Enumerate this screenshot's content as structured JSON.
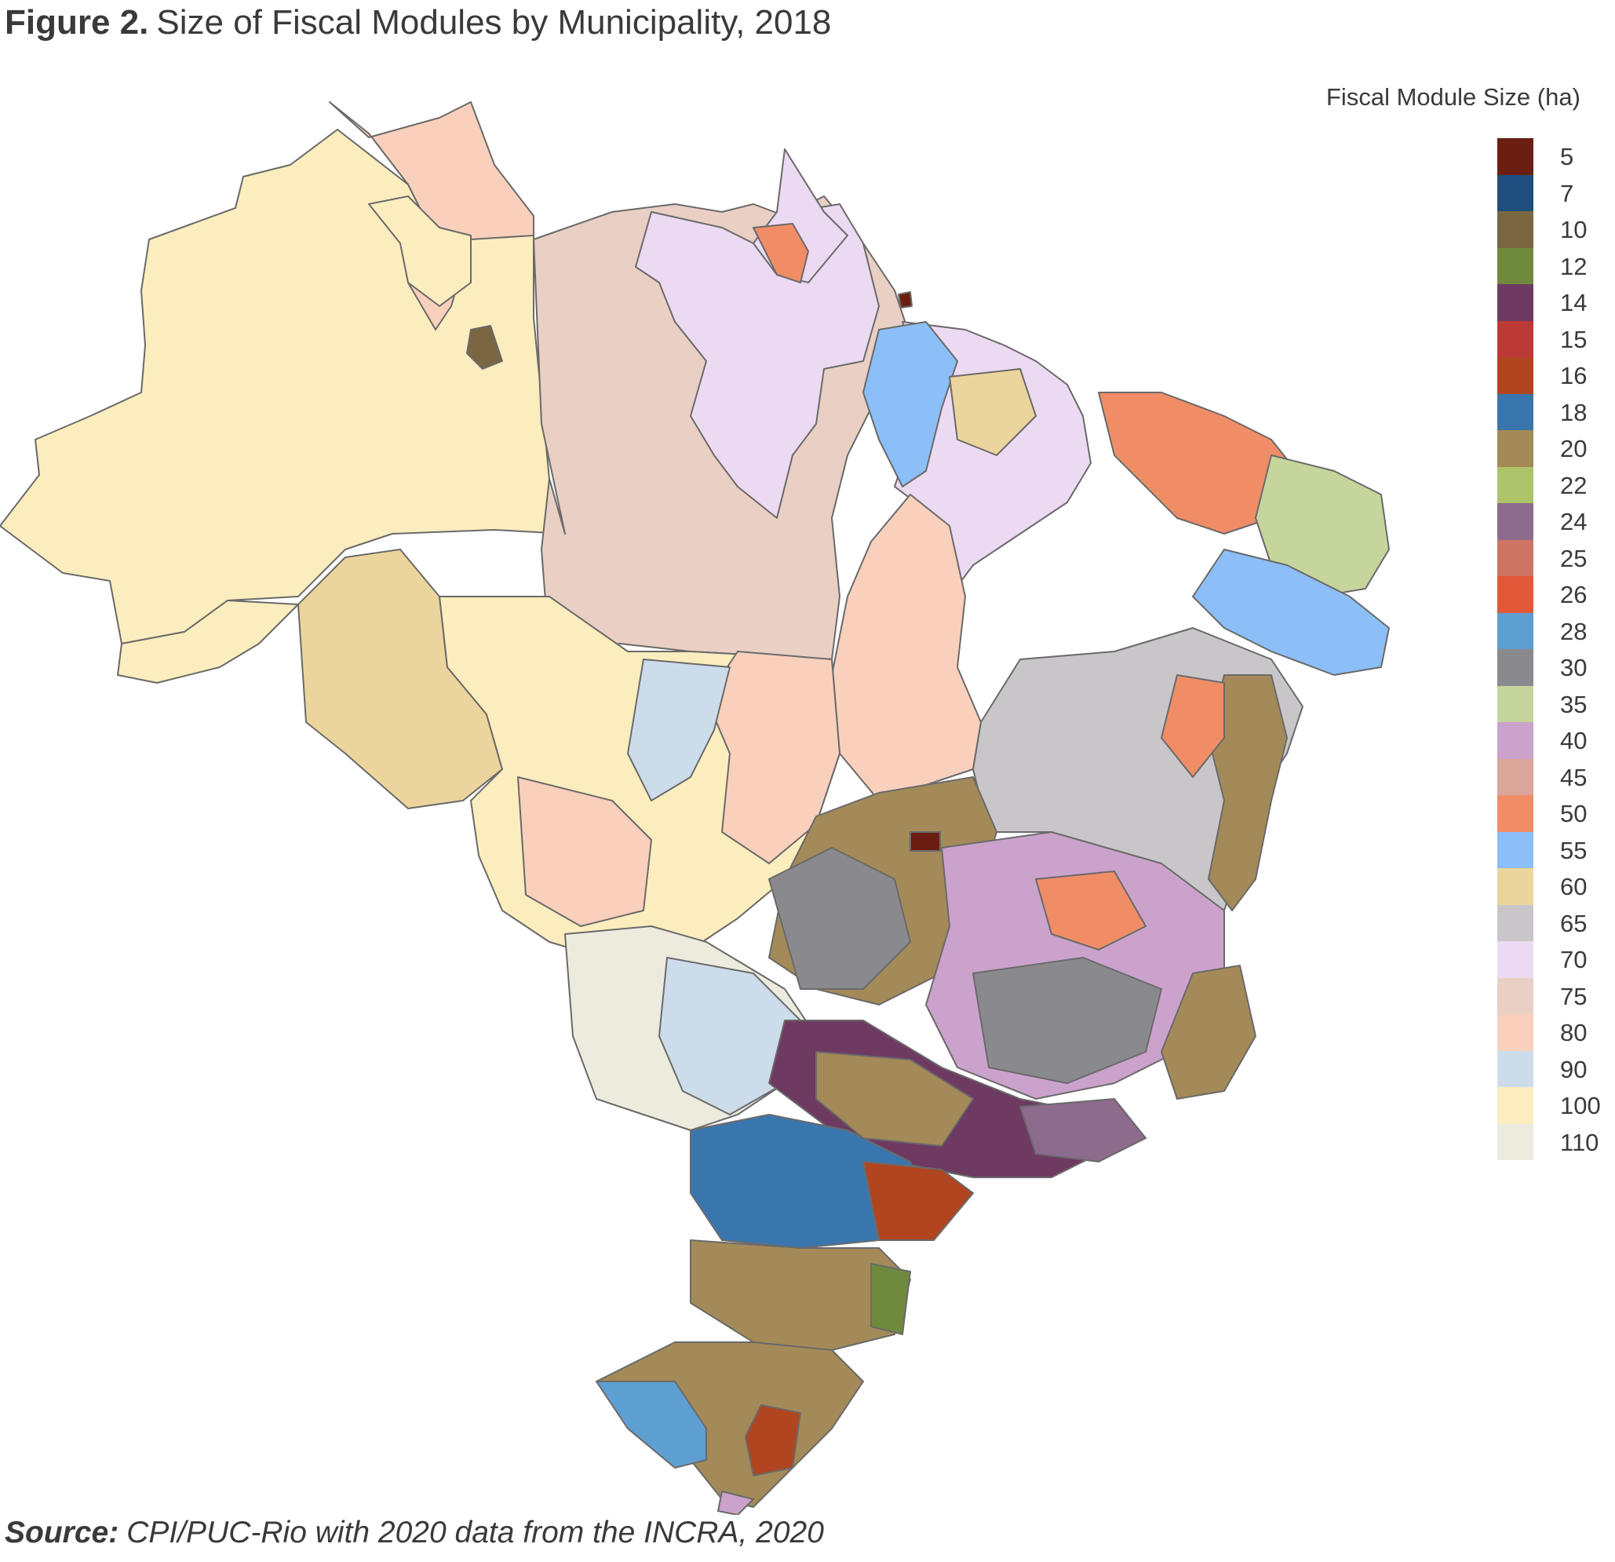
{
  "title": {
    "label": "Figure 2.",
    "text": "Size of Fiscal Modules by Municipality, 2018"
  },
  "legend": {
    "title": "Fiscal Module Size (ha)",
    "items": [
      {
        "label": "5",
        "color": "#6b1f12"
      },
      {
        "label": "7",
        "color": "#1d4e7e"
      },
      {
        "label": "10",
        "color": "#7a6640"
      },
      {
        "label": "12",
        "color": "#6f8a3c"
      },
      {
        "label": "14",
        "color": "#6e3a62"
      },
      {
        "label": "15",
        "color": "#bb3a36"
      },
      {
        "label": "16",
        "color": "#b0451f"
      },
      {
        "label": "18",
        "color": "#3a76ae"
      },
      {
        "label": "20",
        "color": "#a48a58"
      },
      {
        "label": "22",
        "color": "#adc46a"
      },
      {
        "label": "24",
        "color": "#8d6b8d"
      },
      {
        "label": "25",
        "color": "#cd7462"
      },
      {
        "label": "26",
        "color": "#e4583a"
      },
      {
        "label": "28",
        "color": "#5e9fd2"
      },
      {
        "label": "30",
        "color": "#8a8a8e"
      },
      {
        "label": "35",
        "color": "#c6d59c"
      },
      {
        "label": "40",
        "color": "#cba2cc"
      },
      {
        "label": "45",
        "color": "#dca59a"
      },
      {
        "label": "50",
        "color": "#f08d67"
      },
      {
        "label": "55",
        "color": "#8cbef7"
      },
      {
        "label": "60",
        "color": "#ecd59c"
      },
      {
        "label": "65",
        "color": "#c8c6c8"
      },
      {
        "label": "70",
        "color": "#ecdaf2"
      },
      {
        "label": "75",
        "color": "#e9cfc4"
      },
      {
        "label": "80",
        "color": "#f9d0bc"
      },
      {
        "label": "90",
        "color": "#cddceb"
      },
      {
        "label": "100",
        "color": "#fcedbe"
      },
      {
        "label": "110",
        "color": "#ecebde"
      }
    ]
  },
  "source": {
    "label": "Source:",
    "text": "CPI/PUC-Rio with 2020 data from the INCRA, 2020"
  }
}
